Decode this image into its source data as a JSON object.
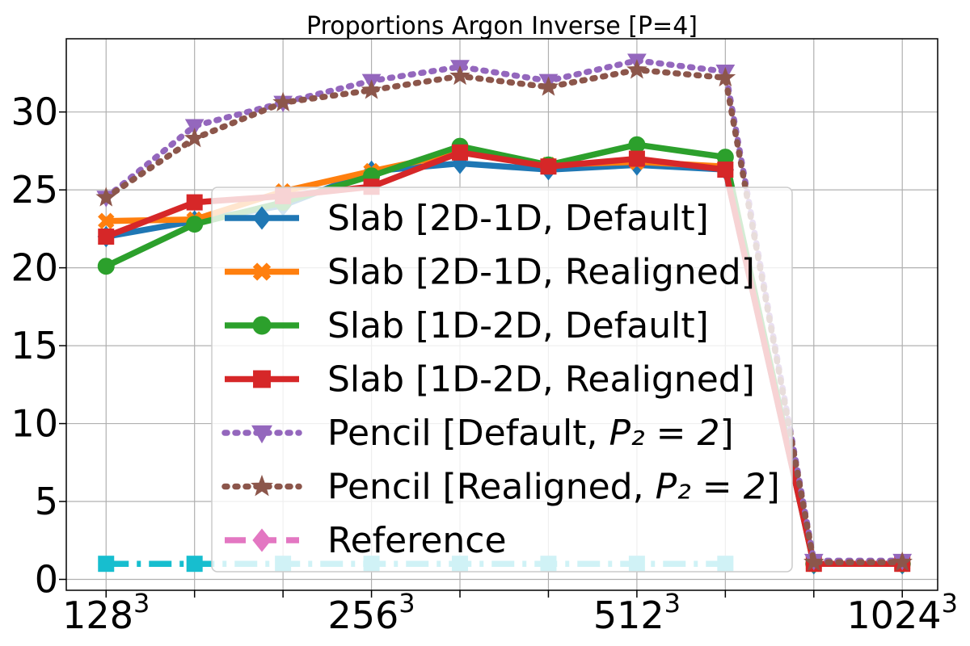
{
  "chart_data": {
    "type": "line",
    "title": "Proportions Argon Inverse [P=4]",
    "xlabel": "",
    "ylabel": "",
    "x": [
      0,
      1,
      2,
      3,
      4,
      5,
      6,
      7,
      8,
      9
    ],
    "x_tick_labels": [
      {
        "pos": 0,
        "base": "128",
        "exp": "3"
      },
      {
        "pos": 3,
        "base": "256",
        "exp": "3"
      },
      {
        "pos": 6,
        "base": "512",
        "exp": "3"
      },
      {
        "pos": 9,
        "base": "1024",
        "exp": "3"
      }
    ],
    "y_ticks": [
      "0",
      "5",
      "10",
      "15",
      "20",
      "25",
      "30"
    ],
    "xlim": [
      -0.45,
      9.4
    ],
    "ylim": [
      -0.7,
      34.7
    ],
    "grid": true,
    "legend_position": "center-right",
    "series": [
      {
        "name": "Slab [2D-1D, Default]",
        "color": "#1f77b4",
        "dash": "solid",
        "marker": "diamond",
        "values": [
          22.0,
          23.0,
          24.0,
          26.2,
          26.7,
          26.3,
          26.6,
          26.3,
          1.0,
          1.0
        ]
      },
      {
        "name": "Slab [2D-1D, Realigned]",
        "color": "#ff7f0e",
        "dash": "solid",
        "marker": "x",
        "values": [
          23.0,
          23.1,
          24.9,
          26.2,
          27.4,
          26.6,
          26.8,
          26.5,
          1.0,
          1.0
        ]
      },
      {
        "name": "Slab [1D-2D, Default]",
        "color": "#2ca02c",
        "dash": "solid",
        "marker": "circle",
        "values": [
          20.1,
          22.8,
          24.2,
          25.9,
          27.8,
          26.6,
          27.9,
          27.1,
          1.0,
          1.0
        ]
      },
      {
        "name": "Slab [1D-2D, Realigned]",
        "color": "#d62728",
        "dash": "solid",
        "marker": "square",
        "values": [
          22.0,
          24.2,
          24.6,
          25.2,
          27.4,
          26.5,
          27.0,
          26.3,
          1.0,
          1.0
        ]
      },
      {
        "name": "Pencil [Default, ",
        "math": "P₂ = 2",
        "name_end": "]",
        "color": "#9467bd",
        "dash": "dotted",
        "marker": "triangle-down",
        "values": [
          24.5,
          29.1,
          30.6,
          32.0,
          32.9,
          32.0,
          33.3,
          32.6,
          1.2,
          1.2
        ]
      },
      {
        "name": "Pencil [Realigned, ",
        "math": "P₂ = 2",
        "name_end": "]",
        "color": "#8c564b",
        "dash": "dotted",
        "marker": "star",
        "values": [
          24.5,
          28.3,
          30.6,
          31.4,
          32.3,
          31.6,
          32.7,
          32.2,
          1.1,
          1.1
        ]
      },
      {
        "name": "Reference",
        "color": "#e377c2",
        "dash": "dashed",
        "marker": "diamond",
        "values": [
          null,
          null,
          null,
          null,
          null,
          null,
          null,
          null,
          null,
          null
        ]
      },
      {
        "name": "",
        "color": "#17becf",
        "dash": "dashdot",
        "marker": "square",
        "in_legend": false,
        "values": [
          1.0,
          1.0,
          1.0,
          1.0,
          1.0,
          1.0,
          1.0,
          1.0,
          null,
          null
        ]
      }
    ]
  }
}
